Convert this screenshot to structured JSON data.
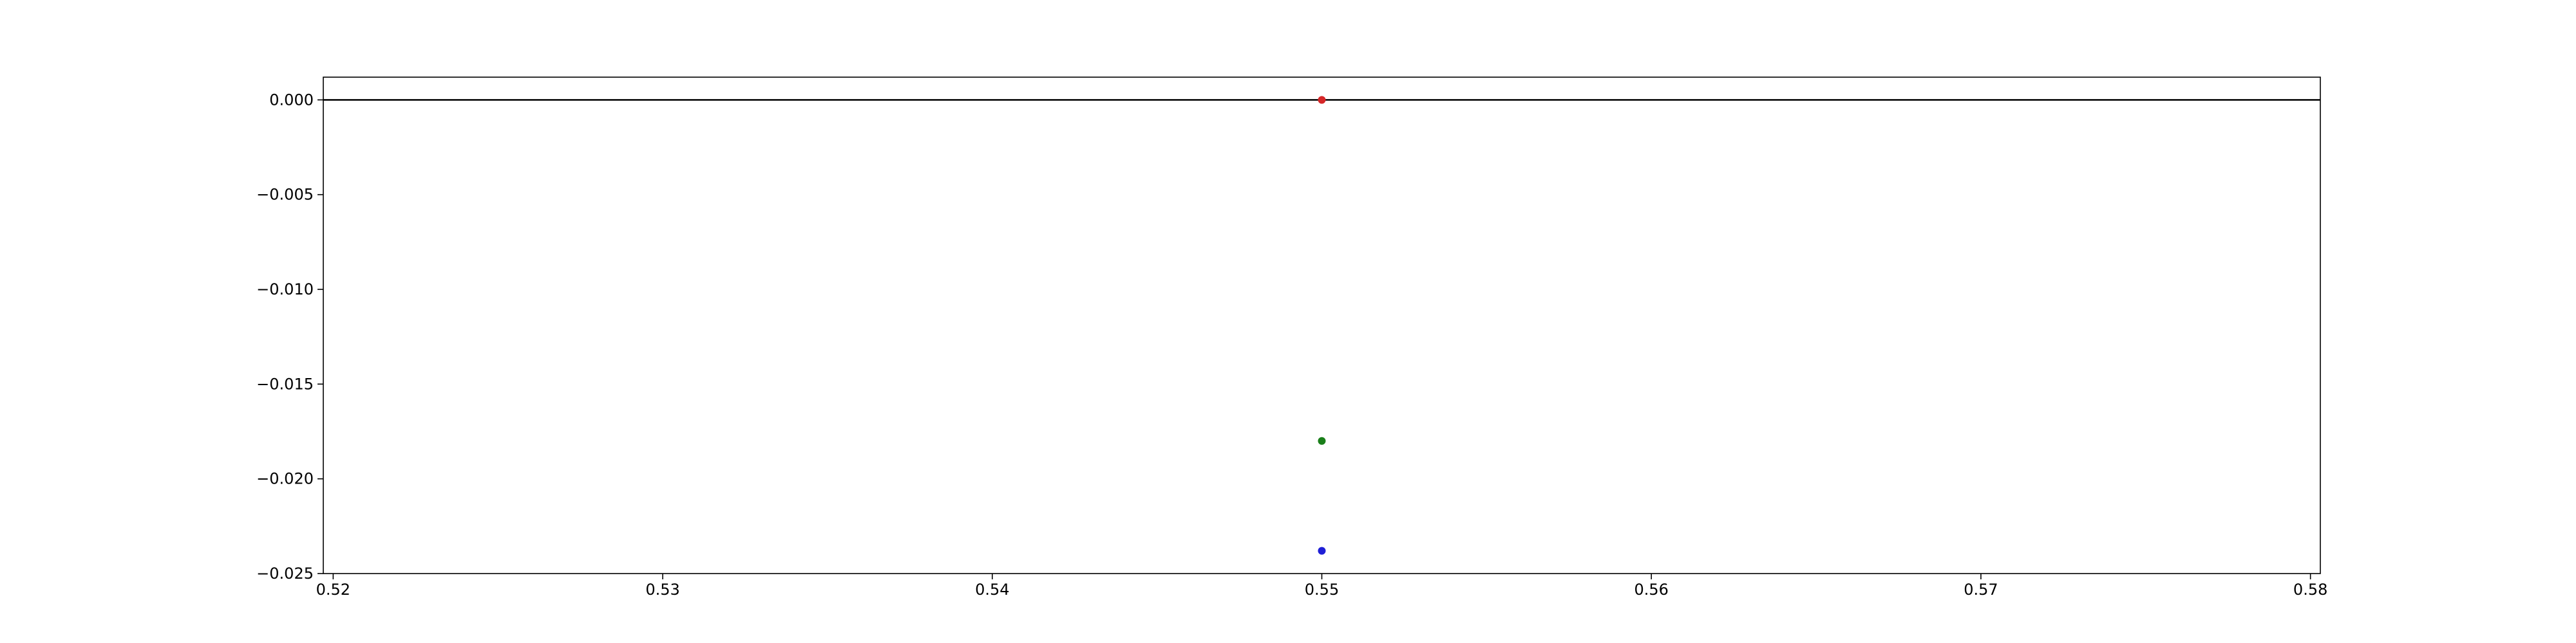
{
  "chart_data": {
    "type": "scatter",
    "title": "",
    "xlabel": "",
    "ylabel": "",
    "xlim": [
      0.5197,
      0.5803
    ],
    "ylim": [
      -0.025,
      0.0012
    ],
    "x_ticks": [
      0.52,
      0.53,
      0.54,
      0.55,
      0.56,
      0.57,
      0.58
    ],
    "x_tick_labels": [
      "0.52",
      "0.53",
      "0.54",
      "0.55",
      "0.56",
      "0.57",
      "0.58"
    ],
    "y_ticks": [
      0.0,
      -0.005,
      -0.01,
      -0.015,
      -0.02,
      -0.025
    ],
    "y_tick_labels": [
      "0.000",
      "−0.005",
      "−0.010",
      "−0.015",
      "−0.020",
      "−0.025"
    ],
    "grid": false,
    "reference_line": {
      "y": 0.0,
      "color": "#000000"
    },
    "series": [
      {
        "x": [
          0.55
        ],
        "y": [
          0.0
        ],
        "color": "#d62728"
      },
      {
        "x": [
          0.55
        ],
        "y": [
          -0.018
        ],
        "color": "#1a7f1a"
      },
      {
        "x": [
          0.55
        ],
        "y": [
          -0.0238
        ],
        "color": "#1f1fd6"
      }
    ]
  }
}
